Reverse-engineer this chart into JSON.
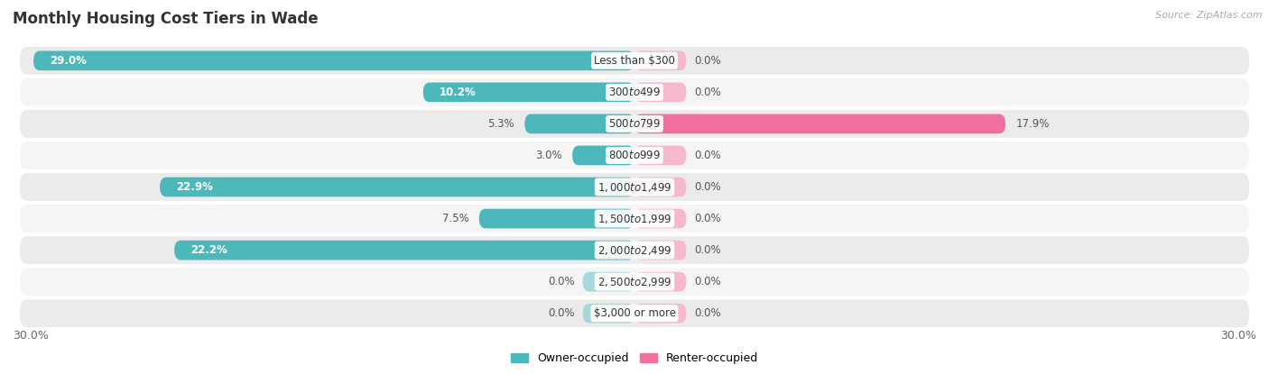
{
  "title": "Monthly Housing Cost Tiers in Wade",
  "source": "Source: ZipAtlas.com",
  "categories": [
    "Less than $300",
    "$300 to $499",
    "$500 to $799",
    "$800 to $999",
    "$1,000 to $1,499",
    "$1,500 to $1,999",
    "$2,000 to $2,499",
    "$2,500 to $2,999",
    "$3,000 or more"
  ],
  "owner_values": [
    29.0,
    10.2,
    5.3,
    3.0,
    22.9,
    7.5,
    22.2,
    0.0,
    0.0
  ],
  "renter_values": [
    0.0,
    0.0,
    17.9,
    0.0,
    0.0,
    0.0,
    0.0,
    0.0,
    0.0
  ],
  "owner_color": "#4db8bb",
  "owner_color_light": "#a8d8da",
  "renter_color": "#f06fa0",
  "renter_color_light": "#f7b8cf",
  "row_bg_odd": "#ebebeb",
  "row_bg_even": "#f5f5f5",
  "xlim": 30.0,
  "stub_value": 2.5,
  "bar_height": 0.62,
  "title_fontsize": 12,
  "source_fontsize": 8,
  "value_fontsize": 8.5,
  "category_fontsize": 8.5,
  "legend_fontsize": 9,
  "axis_tick_fontsize": 9
}
